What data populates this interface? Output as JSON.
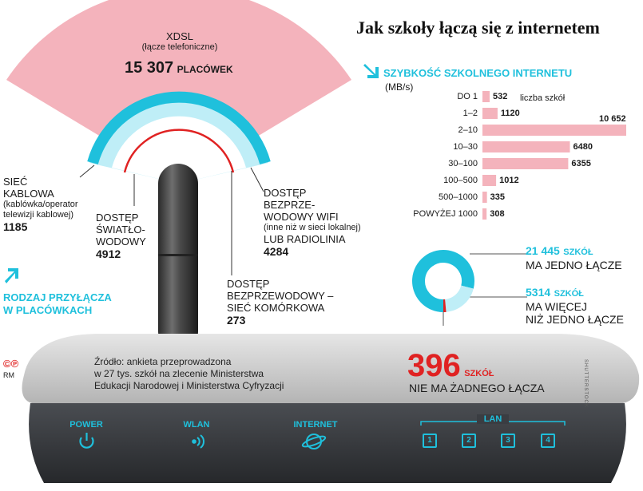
{
  "title": "Jak szkoły łączą się z internetem",
  "section_title": "RODZAJ PRZYŁĄCZA W PLACÓWKACH",
  "connection_types": [
    {
      "name": "XDSL",
      "sub": "(łącze telefoniczne)",
      "value": "15 307",
      "unit": "PLACÓWEK"
    },
    {
      "name": "SIEĆ KABLOWA",
      "sub": "(kablówka/operator telewizji kablowej)",
      "value": "1185"
    },
    {
      "name": "DOSTĘP ŚWIATŁO-WODOWY",
      "value": "4912"
    },
    {
      "name": "DOSTĘP BEZPRZEWODOWY – SIEĆ KOMÓRKOWA",
      "value": "273"
    },
    {
      "name": "DOSTĘP BEZPRZE-WODOWY WIFI",
      "sub": "(inne niż w sieci lokalnej)",
      "name2": "LUB RADIOLINIA",
      "value": "4284"
    }
  ],
  "chart_data": {
    "type": "bar",
    "title": "SZYBKOŚĆ SZKOLNEGO INTERNETU",
    "unit": "(MB/s)",
    "value_label": "liczba szkół",
    "categories": [
      "DO 1",
      "1–2",
      "2–10",
      "10–30",
      "30–100",
      "100–500",
      "500–1000",
      "POWYŻEJ 1000"
    ],
    "values": [
      532,
      1120,
      10652,
      6480,
      6355,
      1012,
      335,
      308
    ],
    "value_labels": [
      "532",
      "1120",
      "10 652",
      "6480",
      "6355",
      "1012",
      "335",
      "308"
    ],
    "max": 10652,
    "color": "#f4b3bc"
  },
  "donut": {
    "segments": [
      {
        "value": 21445,
        "color": "#1fc0dc"
      },
      {
        "value": 5314,
        "color": "#bfeef7"
      },
      {
        "value": 396,
        "color": "#e02222"
      }
    ],
    "legend": [
      {
        "value": "21 445",
        "unit": "SZKÓŁ",
        "text": "MA JEDNO ŁĄCZE"
      },
      {
        "value": "5314",
        "unit": "SZKÓŁ",
        "text1": "MA WIĘCEJ",
        "text2": "NIŻ JEDNO ŁĄCZE"
      },
      {
        "value": "396",
        "unit": "SZKÓŁ",
        "text": "NIE MA ŻADNEGO ŁĄCZA"
      }
    ]
  },
  "source": {
    "line1": "Źródło: ankieta przeprowadzona",
    "line2": "w 27 tys. szkół na zlecenie Ministerstwa",
    "line3": "Edukacji Narodowej i Ministerstwa Cyfryzacji"
  },
  "copyright": "©℗",
  "credit": "RM",
  "watermark": "SHUTTERSTOCK",
  "router": {
    "power": "POWER",
    "wlan": "WLAN",
    "internet": "INTERNET",
    "lan": "LAN",
    "ports": [
      "1",
      "2",
      "3",
      "4"
    ]
  },
  "colors": {
    "cyan": "#1fc0dc",
    "pink": "#f4b3bc",
    "red": "#e02222",
    "light_cyan": "#bfeef7"
  }
}
